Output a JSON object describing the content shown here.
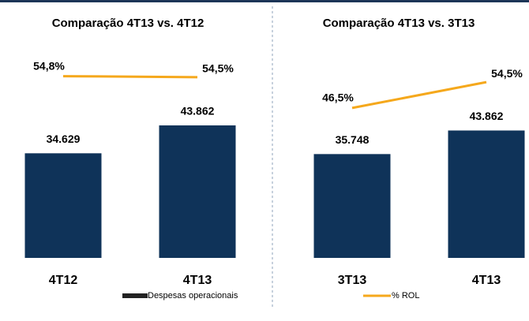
{
  "chart_data": [
    {
      "type": "bar",
      "title": "Comparação 4T13 vs. 4T12",
      "categories": [
        "4T12",
        "4T13"
      ],
      "series": [
        {
          "name": "Despesas operacionais",
          "color": "#0f3359",
          "values": [
            34629,
            43862
          ],
          "value_labels": [
            "34.629",
            "43.862"
          ]
        },
        {
          "name": "% ROL",
          "type": "line",
          "axis": "y2",
          "color": "#f5a81c",
          "values": [
            54.8,
            54.5
          ],
          "value_labels": [
            "54,8%",
            "54,5%"
          ]
        }
      ],
      "ylim": [
        0,
        69700
      ],
      "y2lim": [
        0,
        63.5
      ]
    },
    {
      "type": "bar",
      "title": "Comparação 4T13 vs. 3T13",
      "categories": [
        "3T13",
        "4T13"
      ],
      "series": [
        {
          "name": "Despesas operacionais",
          "color": "#0f3359",
          "values": [
            35748,
            43862
          ],
          "value_labels": [
            "35.748",
            "43.862"
          ]
        },
        {
          "name": "% ROL",
          "type": "line",
          "axis": "y2",
          "color": "#f5a81c",
          "values": [
            46.5,
            54.5
          ],
          "value_labels": [
            "46,5%",
            "54,5%"
          ]
        }
      ],
      "ylim": [
        0,
        72500
      ],
      "y2lim": [
        0,
        65.3
      ]
    }
  ]
}
